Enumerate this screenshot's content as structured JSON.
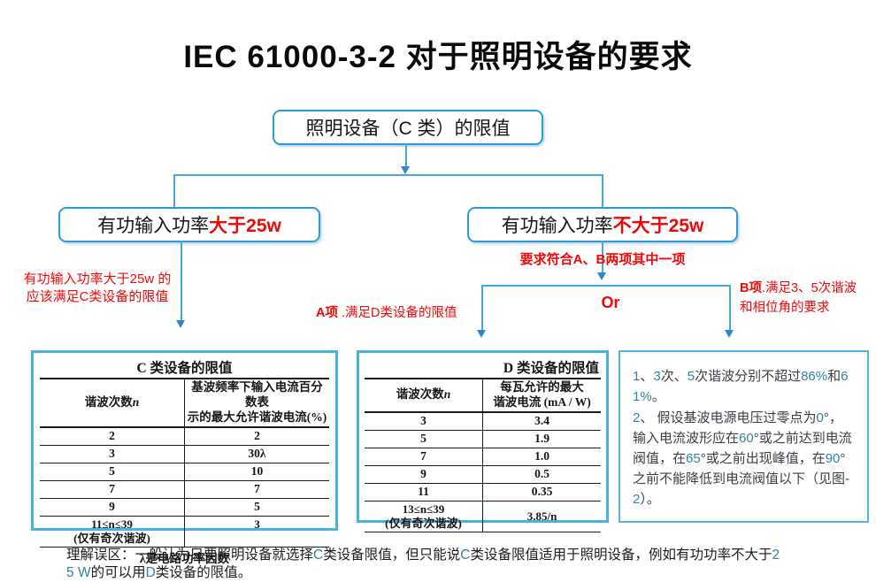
{
  "page": {
    "title": "IEC 61000-3-2 对于照明设备的要求"
  },
  "flow": {
    "root": "照明设备（C 类）的限值",
    "left_box": {
      "plain": "有功输入功率",
      "em": "大于25w"
    },
    "right_box": {
      "plain": "有功输入功率",
      "em": "不大于25w"
    },
    "left_note": "有功输入功率大于25w 的\n应该满足C类设备的限值",
    "ab_note": "要求符合A、B两项其中一项",
    "option_a": {
      "em": "A项",
      "rest": " .满足D类设备的限值"
    },
    "or": "Or",
    "option_b": {
      "em": "B项",
      "rest": ".满足3、5次谐波和相位角的要求"
    }
  },
  "table_c": {
    "title": "C 类设备的限值",
    "col_n_label": "谐波次数",
    "col_n_var": "n",
    "col_v": "基波频率下输入电流百分数表\n示的最大允许谐波电流(%)",
    "rows": [
      [
        "2",
        "2"
      ],
      [
        "3",
        "30λ"
      ],
      [
        "5",
        "10"
      ],
      [
        "7",
        "7"
      ],
      [
        "9",
        "5"
      ]
    ],
    "last_row": {
      "range": "11≤n≤39",
      "note": "(仅有奇次谐波)",
      "value": "3"
    },
    "footnote": "λ是电路功率因数"
  },
  "table_d": {
    "title": "D 类设备的限值",
    "col_n_label": "谐波次数",
    "col_n_var": "n",
    "col_v": "每瓦允许的最大\n谐波电流 (mA / W)",
    "rows": [
      [
        "3",
        "3.4"
      ],
      [
        "5",
        "1.9"
      ],
      [
        "7",
        "1.0"
      ],
      [
        "9",
        "0.5"
      ],
      [
        "11",
        "0.35"
      ]
    ],
    "last_row": {
      "range": "13≤n≤39",
      "note": "(仅有奇次谐波)",
      "value": "3.85/n"
    }
  },
  "panel_b": {
    "item1": "1、3次、5次谐波分别不超过86%和61%。",
    "item2": "2、 假设基波电源电压过零点为0°，输入电流波形应在60°或之前达到电流阀值，在65°或之前出现峰值，在90°之前不能降低到电流阀值以下（见图-2）。"
  },
  "footer": {
    "text": "理解误区：一般认为只要照明设备就选择C类设备限值，但只能说C类设备限值适用于照明设备，例如有功功率不大于25 W的可以用D类设备的限值。"
  },
  "colors": {
    "accent_blue": "#2e9bd6",
    "line_blue": "#46a9dc",
    "table_frame_blue": "#49b1e3",
    "red": "#f40606",
    "latin_teal": "#31849b"
  }
}
